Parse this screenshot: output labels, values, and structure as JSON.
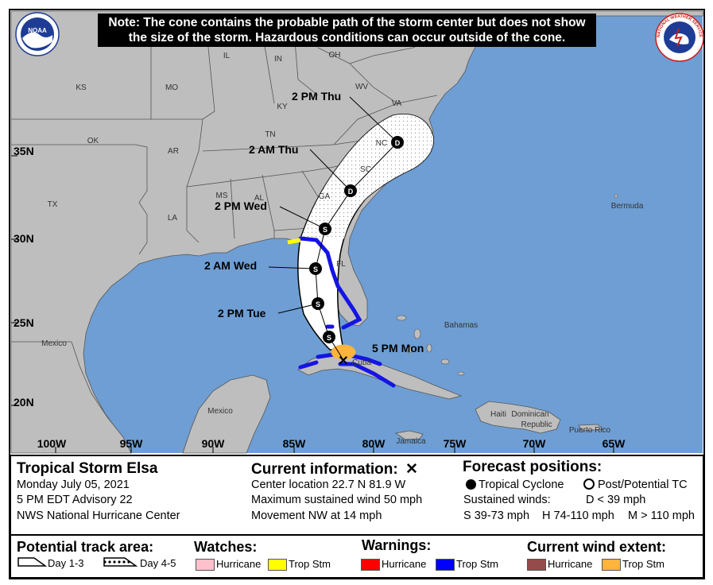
{
  "note": {
    "line1": "Note: The cone contains the probable path of the storm center but does not show",
    "line2": "the size of the storm. Hazardous conditions can occur outside of the cone."
  },
  "logos": {
    "noaa": "NOAA",
    "nws": "NATIONAL WEATHER SERVICE"
  },
  "map_labels": {
    "states": [
      "KS",
      "MO",
      "IL",
      "IN",
      "OH",
      "WV",
      "VA",
      "KY",
      "NC",
      "TN",
      "OK",
      "AR",
      "SC",
      "MS",
      "AL",
      "GA",
      "TX",
      "LA",
      "FL"
    ],
    "places": [
      "Bermuda",
      "Mexico",
      "Bahamas",
      "Cuba",
      "Mexico",
      "Haiti",
      "Dominican",
      "Republic",
      "Puerto Rico",
      "Jamaica"
    ],
    "lat_ticks": [
      "35N",
      "30N",
      "25N",
      "20N"
    ],
    "lon_ticks": [
      "100W",
      "95W",
      "90W",
      "85W",
      "80W",
      "75W",
      "70W",
      "65W"
    ]
  },
  "forecast_track": [
    {
      "label": "5 PM Mon",
      "lat": 22.7,
      "lon": -81.9,
      "symbol": "x"
    },
    {
      "label": "",
      "lat": 24.6,
      "lon": -82.7,
      "symbol": "S"
    },
    {
      "label": "2 PM Tue",
      "lat": 26.2,
      "lon": -83.1,
      "symbol": "S"
    },
    {
      "label": "2 AM Wed",
      "lat": 28.1,
      "lon": -83.1,
      "symbol": "S"
    },
    {
      "label": "2 PM Wed",
      "lat": 30.7,
      "lon": -82.4,
      "symbol": "S"
    },
    {
      "label": "2 AM Thu",
      "lat": 33.2,
      "lon": -80.2,
      "symbol": "D"
    },
    {
      "label": "2 PM Thu",
      "lat": 36.1,
      "lon": -77.0,
      "symbol": "D"
    }
  ],
  "storm": {
    "name": "Tropical Storm Elsa",
    "date": "Monday July 05, 2021",
    "advisory": "5 PM EDT Advisory 22",
    "source": "NWS National Hurricane Center"
  },
  "current": {
    "title": "Current information:",
    "title_icon": "x-icon",
    "location": "Center location 22.7 N 81.9 W",
    "wind": "Maximum sustained wind 50 mph",
    "movement": "Movement NW at 14 mph"
  },
  "forecast_positions": {
    "title": "Forecast positions:",
    "tropical": "Tropical Cyclone",
    "post": "Post/Potential TC",
    "sustained": "Sustained winds:",
    "d": "D < 39 mph",
    "s": "S 39-73 mph",
    "h": "H 74-110 mph",
    "m": "M > 110 mph"
  },
  "legend": {
    "track_title": "Potential track area:",
    "day13": "Day 1-3",
    "day45": "Day 4-5",
    "watches_title": "Watches:",
    "warnings_title": "Warnings:",
    "wind_title": "Current wind extent:",
    "hurricane": "Hurricane",
    "trop_stm": "Trop Stm"
  },
  "colors": {
    "ocean": "#6e9ed3",
    "land": "#bebebe",
    "cone": "#ffffff",
    "hurricane_watch": "#ffc0cb",
    "ts_watch": "#ffff00",
    "hurricane_warning": "#ff0000",
    "ts_warning": "#0000ff",
    "hurricane_wind": "#964b4b",
    "ts_wind": "#ffb43c"
  }
}
